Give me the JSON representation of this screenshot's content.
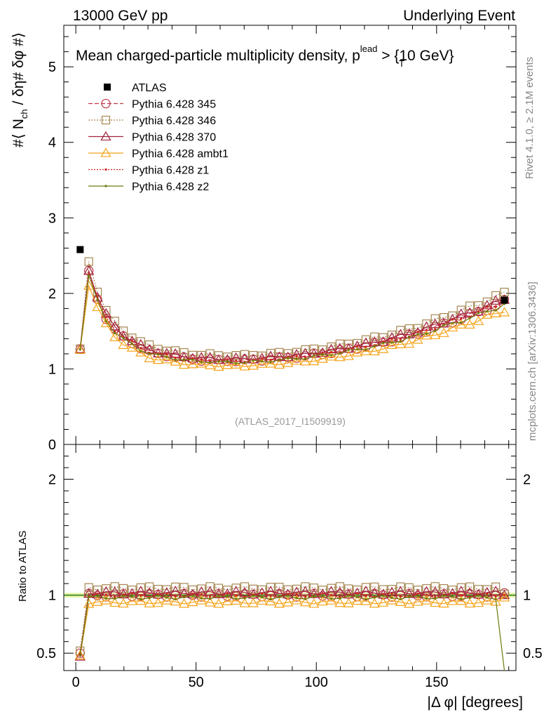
{
  "header": {
    "left": "13000 GeV pp",
    "right": "Underlying Event"
  },
  "side_labels": {
    "rivet": "Rivet 4.1.0, ≥ 2.1M events",
    "mcplots": "mcplots.cern.ch [arXiv:1306.3436]"
  },
  "chart_data": {
    "type": "scatter",
    "title": "Mean charged-particle multiplicity density, p",
    "title_sup": "lead",
    "title_sub": "T",
    "title_suffix": " > {10 GeV}",
    "watermark": "(ATLAS_2017_I1509919)",
    "xlabel": "|Δ φ| [degrees]",
    "ylabel": "#⟨ N_ch / δη# δφ #⟩",
    "ylabel_parts": {
      "pre": "#⟨ N",
      "sub": "ch",
      "post": " / δη# δφ #⟩"
    },
    "ratio_ylabel": "Ratio to ATLAS",
    "xlim": [
      -5,
      183
    ],
    "ylim": [
      0,
      5.55
    ],
    "ratio_ylim": [
      0.35,
      2.3
    ],
    "x_ticks": [
      0,
      50,
      100,
      150
    ],
    "x_ticklabels": [
      "0",
      "50",
      "100",
      "150"
    ],
    "y_ticks": [
      0,
      1,
      2,
      3,
      4,
      5
    ],
    "y_ticklabels": [
      "0",
      "1",
      "2",
      "3",
      "4",
      "5"
    ],
    "ratio_ticks": [
      0.5,
      1,
      2
    ],
    "ratio_ticklabels": [
      "0.5",
      "1",
      "2"
    ],
    "atlas": {
      "name": "ATLAS",
      "x": [
        1.8,
        178.2
      ],
      "y": [
        2.58,
        1.91
      ]
    },
    "series": [
      {
        "name": "Pythia 6.428 345",
        "color": "#c0394b",
        "marker": "circle",
        "dash": "6,3",
        "ratio_offset": 0.0,
        "ratio_lead": 0.5,
        "ratio_tail": 1.02
      },
      {
        "name": "Pythia 6.428 346",
        "color": "#a68752",
        "marker": "square",
        "dash": "2,2",
        "ratio_offset": 0.06,
        "ratio_lead": 0.52,
        "ratio_tail": 1.01
      },
      {
        "name": "Pythia 6.428 370",
        "color": "#a3223c",
        "marker": "triangle",
        "dash": "",
        "ratio_offset": 0.02,
        "ratio_lead": 0.47,
        "ratio_tail": 1.0
      },
      {
        "name": "Pythia 6.428 ambt1",
        "color": "#f4a41c",
        "marker": "triangle",
        "dash": "",
        "ratio_offset": -0.06,
        "ratio_lead": 0.48,
        "ratio_tail": 0.98
      },
      {
        "name": "Pythia 6.428 z1",
        "color": "#cc2222",
        "marker": "dot",
        "dash": "2,2",
        "ratio_offset": 0.0,
        "ratio_lead": 0.49,
        "ratio_tail": 1.0
      },
      {
        "name": "Pythia 6.428 z2",
        "color": "#6e7a0c",
        "marker": "dot",
        "dash": "",
        "ratio_offset": -0.02,
        "ratio_lead": 0.48,
        "ratio_tail": 0.3
      }
    ],
    "shape": {
      "x": [
        1.8,
        5.4,
        9.0,
        12.6,
        16.2,
        19.8,
        23.4,
        27.0,
        30.6,
        34.2,
        37.8,
        41.4,
        45.0,
        48.6,
        52.2,
        55.8,
        59.4,
        63.0,
        66.6,
        70.2,
        73.8,
        77.4,
        81.0,
        84.6,
        88.2,
        91.8,
        95.4,
        99.0,
        102.6,
        106.2,
        109.8,
        113.4,
        117.0,
        120.6,
        124.2,
        127.8,
        131.4,
        135.0,
        138.6,
        142.2,
        145.8,
        149.4,
        153.0,
        156.6,
        160.2,
        163.8,
        167.4,
        171.0,
        174.6,
        178.2
      ],
      "y": [
        1.26,
        2.27,
        1.93,
        1.68,
        1.52,
        1.42,
        1.35,
        1.28,
        1.23,
        1.2,
        1.18,
        1.16,
        1.14,
        1.13,
        1.12,
        1.12,
        1.11,
        1.11,
        1.11,
        1.11,
        1.12,
        1.12,
        1.13,
        1.14,
        1.15,
        1.16,
        1.17,
        1.19,
        1.2,
        1.22,
        1.24,
        1.26,
        1.28,
        1.3,
        1.33,
        1.35,
        1.38,
        1.41,
        1.44,
        1.47,
        1.51,
        1.55,
        1.59,
        1.63,
        1.67,
        1.71,
        1.75,
        1.8,
        1.84,
        1.89
      ]
    }
  }
}
